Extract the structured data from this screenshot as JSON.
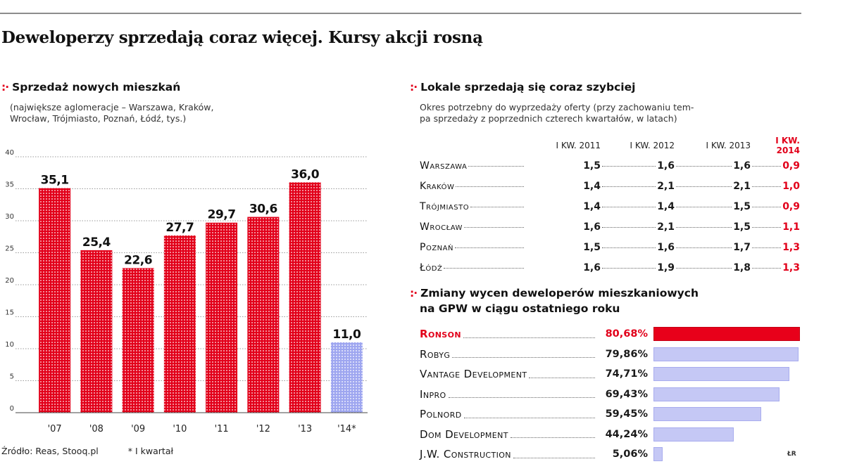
{
  "headline": "Deweloperzy sprzedają coraz więcej. Kursy akcji rosną",
  "section_marker": ":·",
  "left_section": {
    "title": "Sprzedaż nowych mieszkań",
    "subtitle_line1": "(największe aglomeracje – Warszawa, Kraków,",
    "subtitle_line2": "Wrocław, Trójmiasto, Poznań, Łódź, tys.)"
  },
  "source": {
    "source_text": "Źródło: Reas, Stooq.pl",
    "footnote": "* I kwartał"
  },
  "chart_data": [
    {
      "type": "bar",
      "categories": [
        "'07",
        "'08",
        "'09",
        "'10",
        "'11",
        "'12",
        "'13",
        "'14*"
      ],
      "values": [
        35.1,
        25.4,
        22.6,
        27.7,
        29.7,
        30.6,
        36.0,
        11.0
      ],
      "value_labels": [
        "35,1",
        "25,4",
        "22,6",
        "27,7",
        "29,7",
        "30,6",
        "36,0",
        "11,0"
      ],
      "yticks": [
        "0",
        "5",
        "10",
        "15",
        "20",
        "25",
        "30",
        "35",
        "40"
      ],
      "ylim": [
        0,
        40
      ],
      "grid": true,
      "colors": [
        "#e2001a",
        "#e2001a",
        "#e2001a",
        "#e2001a",
        "#e2001a",
        "#e2001a",
        "#e2001a",
        "#9ea6f0"
      ]
    },
    {
      "type": "table",
      "title": "Lokale sprzedają się coraz szybciej",
      "subtitle_line1": "Okres potrzebny do wyprzedaży oferty (przy zachowaniu tem-",
      "subtitle_line2": "pa sprzedaży z poprzednich czterech kwartałów, w latach)",
      "columns": [
        "I KW. 2011",
        "I KW. 2012",
        "I KW. 2013",
        "I KW. 2014"
      ],
      "highlight_column": "I KW. 2014",
      "highlight_color": "#e2001a",
      "rows": [
        {
          "city": "Warszawa",
          "values": [
            "1,5",
            "1,6",
            "1,6",
            "0,9"
          ]
        },
        {
          "city": "Kraków",
          "values": [
            "1,4",
            "2,1",
            "2,1",
            "1,0"
          ]
        },
        {
          "city": "Trójmiasto",
          "values": [
            "1,4",
            "1,4",
            "1,5",
            "0,9"
          ]
        },
        {
          "city": "Wrocław",
          "values": [
            "1,6",
            "2,1",
            "1,5",
            "1,1"
          ]
        },
        {
          "city": "Poznań",
          "values": [
            "1,5",
            "1,6",
            "1,7",
            "1,3"
          ]
        },
        {
          "city": "Łódź",
          "values": [
            "1,6",
            "1,9",
            "1,8",
            "1,3"
          ]
        }
      ]
    },
    {
      "type": "bar",
      "orientation": "horizontal",
      "title_line1": "Zmiany wycen deweloperów mieszkaniowych",
      "title_line2": "na GPW w ciągu ostatniego roku",
      "xlim": [
        0,
        80.68
      ],
      "items": [
        {
          "name": "Ronson",
          "value": 80.68,
          "label": "80,68%",
          "highlight": true
        },
        {
          "name": "Robyg",
          "value": 79.86,
          "label": "79,86%",
          "highlight": false
        },
        {
          "name": "Vantage Development",
          "value": 74.71,
          "label": "74,71%",
          "highlight": false
        },
        {
          "name": "Inpro",
          "value": 69.43,
          "label": "69,43%",
          "highlight": false
        },
        {
          "name": "Polnord",
          "value": 59.45,
          "label": "59,45%",
          "highlight": false
        },
        {
          "name": "Dom Development",
          "value": 44.24,
          "label": "44,24%",
          "highlight": false
        },
        {
          "name": "J.W. Construction",
          "value": 5.06,
          "label": "5,06%",
          "highlight": false
        }
      ],
      "bar_color": "#c5c8f5",
      "highlight_color": "#e8001a"
    }
  ],
  "credit": "ŁR"
}
